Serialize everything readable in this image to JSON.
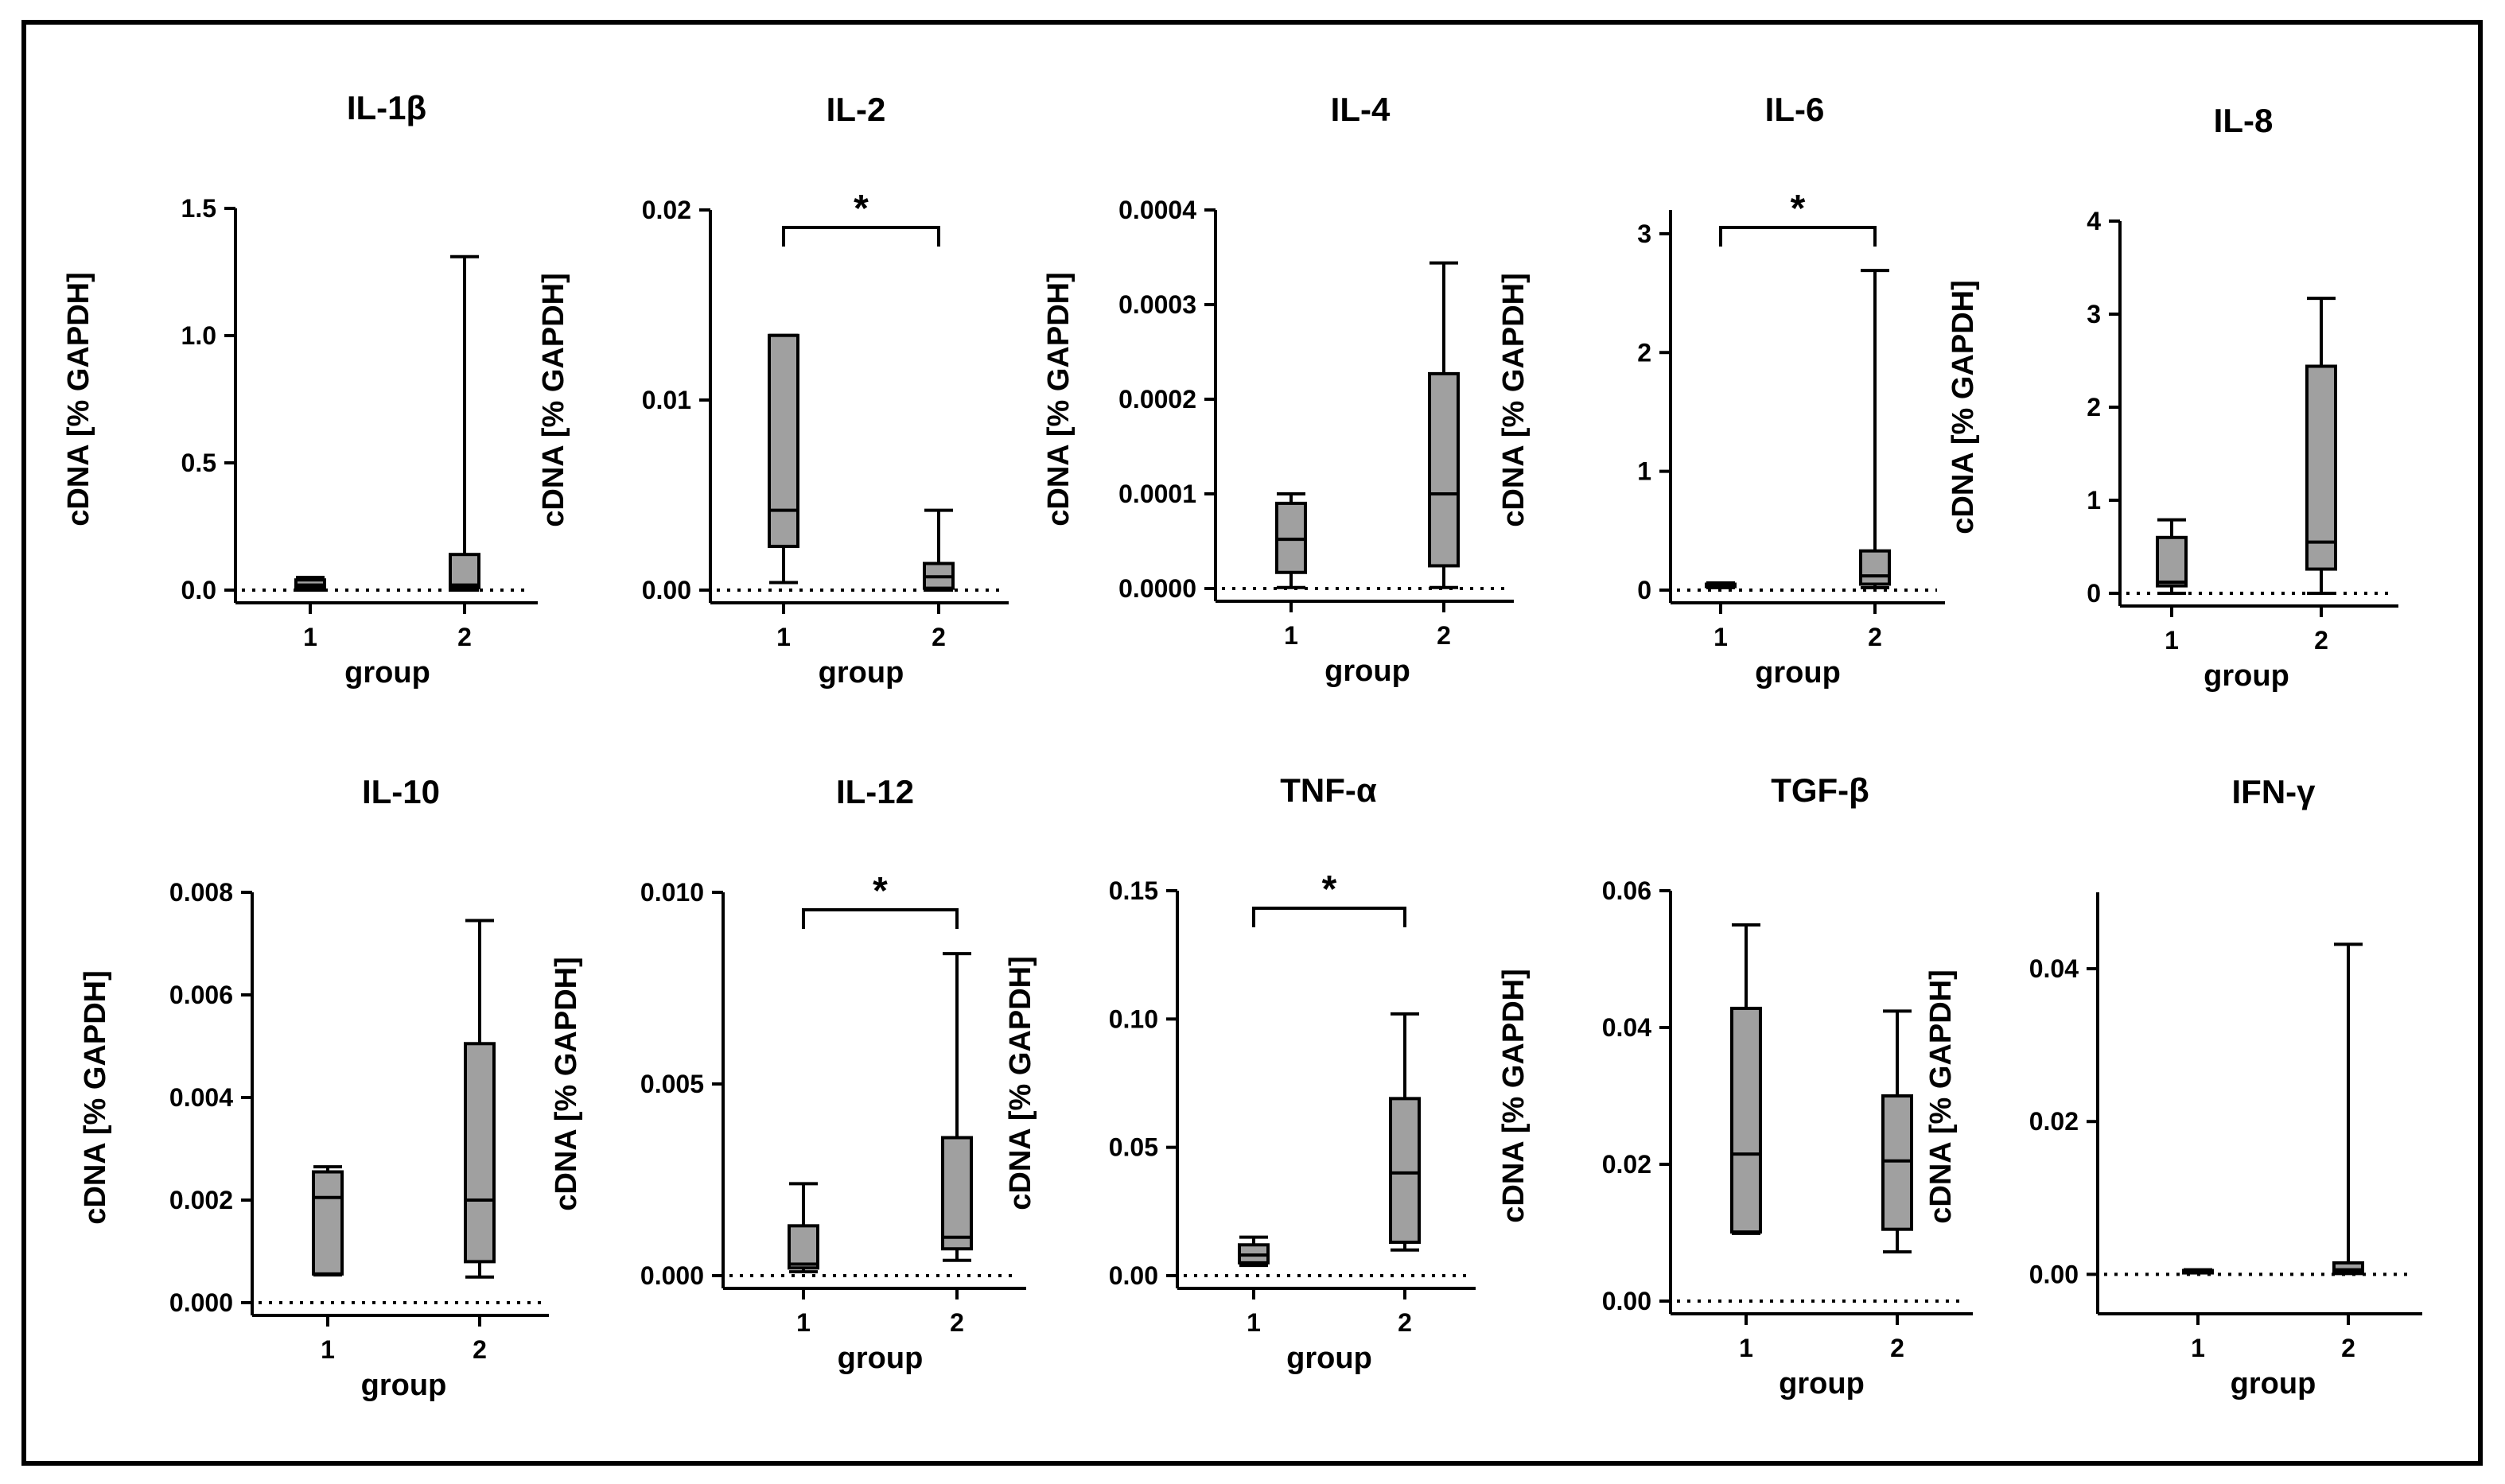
{
  "colors": {
    "box_fill": "#a0a0a0",
    "stroke": "#000000",
    "background": "#ffffff"
  },
  "chart_data": [
    {
      "type": "box",
      "title": "IL-1β",
      "ylabel": "cDNA [% GAPDH]",
      "xlabel": "group",
      "categories": [
        "1",
        "2"
      ],
      "ylim": [
        0,
        1.5
      ],
      "yticks": [
        0,
        0.5,
        1.0,
        1.5
      ],
      "yticklabels": [
        "0.0",
        "0.5",
        "1.0",
        "1.5"
      ],
      "boxes": [
        {
          "group": "1",
          "min": 0.0,
          "q1": 0.01,
          "median": 0.02,
          "q3": 0.04,
          "max": 0.05
        },
        {
          "group": "2",
          "min": 0.0,
          "q1": 0.01,
          "median": 0.02,
          "q3": 0.14,
          "max": 1.31
        }
      ],
      "significance": ""
    },
    {
      "type": "box",
      "title": "IL-2",
      "ylabel": "cDNA [% GAPDH]",
      "xlabel": "group",
      "categories": [
        "1",
        "2"
      ],
      "ylim": [
        0,
        0.02
      ],
      "yticks": [
        0,
        0.01,
        0.02
      ],
      "yticklabels": [
        "0.00",
        "0.01",
        "0.02"
      ],
      "boxes": [
        {
          "group": "1",
          "min": 0.0004,
          "q1": 0.0023,
          "median": 0.0042,
          "q3": 0.0134,
          "max": 0.0134
        },
        {
          "group": "2",
          "min": 0.0,
          "q1": 0.0001,
          "median": 0.0007,
          "q3": 0.0014,
          "max": 0.0042
        }
      ],
      "significance": "*"
    },
    {
      "type": "box",
      "title": "IL-4",
      "ylabel": "cDNA [% GAPDH]",
      "xlabel": "group",
      "categories": [
        "1",
        "2"
      ],
      "ylim": [
        0,
        0.0004
      ],
      "yticks": [
        0,
        0.0001,
        0.0002,
        0.0003,
        0.0004
      ],
      "yticklabels": [
        "0.0000",
        "0.0001",
        "0.0002",
        "0.0003",
        "0.0004"
      ],
      "boxes": [
        {
          "group": "1",
          "min": 1e-06,
          "q1": 1.7e-05,
          "median": 5.2e-05,
          "q3": 9e-05,
          "max": 0.0001
        },
        {
          "group": "2",
          "min": 1e-06,
          "q1": 2.4e-05,
          "median": 0.0001,
          "q3": 0.000227,
          "max": 0.000344
        }
      ],
      "significance": ""
    },
    {
      "type": "box",
      "title": "IL-6",
      "ylabel": "cDNA [% GAPDH]",
      "xlabel": "group",
      "categories": [
        "1",
        "2"
      ],
      "ylim": [
        0,
        3.2
      ],
      "yticks": [
        0,
        1,
        2,
        3
      ],
      "yticklabels": [
        "0",
        "1",
        "2",
        "3"
      ],
      "boxes": [
        {
          "group": "1",
          "min": 0.02,
          "q1": 0.03,
          "median": 0.04,
          "q3": 0.05,
          "max": 0.06
        },
        {
          "group": "2",
          "min": 0.02,
          "q1": 0.05,
          "median": 0.12,
          "q3": 0.33,
          "max": 2.69
        }
      ],
      "significance": "*"
    },
    {
      "type": "box",
      "title": "IL-8",
      "ylabel": "cDNA [% GAPDH]",
      "xlabel": "group",
      "categories": [
        "1",
        "2"
      ],
      "ylim": [
        0,
        4
      ],
      "yticks": [
        0,
        1,
        2,
        3,
        4
      ],
      "yticklabels": [
        "0",
        "1",
        "2",
        "3",
        "4"
      ],
      "boxes": [
        {
          "group": "1",
          "min": 0.0,
          "q1": 0.08,
          "median": 0.12,
          "q3": 0.6,
          "max": 0.79
        },
        {
          "group": "2",
          "min": 0.0,
          "q1": 0.26,
          "median": 0.55,
          "q3": 2.44,
          "max": 3.17
        }
      ],
      "significance": ""
    },
    {
      "type": "box",
      "title": "IL-10",
      "ylabel": "cDNA [% GAPDH]",
      "xlabel": "group",
      "categories": [
        "1",
        "2"
      ],
      "ylim": [
        0,
        0.008
      ],
      "yticks": [
        0,
        0.002,
        0.004,
        0.006,
        0.008
      ],
      "yticklabels": [
        "0.000",
        "0.002",
        "0.004",
        "0.006",
        "0.008"
      ],
      "boxes": [
        {
          "group": "1",
          "min": 0.00054,
          "q1": 0.00056,
          "median": 0.00205,
          "q3": 0.00255,
          "max": 0.00265
        },
        {
          "group": "2",
          "min": 0.0005,
          "q1": 0.0008,
          "median": 0.002,
          "q3": 0.00505,
          "max": 0.00745
        }
      ],
      "significance": ""
    },
    {
      "type": "box",
      "title": "IL-12",
      "ylabel": "cDNA [% GAPDH]",
      "xlabel": "group",
      "categories": [
        "1",
        "2"
      ],
      "ylim": [
        0,
        0.01
      ],
      "yticks": [
        0,
        0.005,
        0.01
      ],
      "yticklabels": [
        "0.000",
        "0.005",
        "0.010"
      ],
      "boxes": [
        {
          "group": "1",
          "min": 0.0001,
          "q1": 0.0002,
          "median": 0.0003,
          "q3": 0.0013,
          "max": 0.0024
        },
        {
          "group": "2",
          "min": 0.0004,
          "q1": 0.0007,
          "median": 0.001,
          "q3": 0.0036,
          "max": 0.0084
        }
      ],
      "significance": "*"
    },
    {
      "type": "box",
      "title": "TNF-α",
      "ylabel": "cDNA [% GAPDH]",
      "xlabel": "group",
      "categories": [
        "1",
        "2"
      ],
      "ylim": [
        0,
        0.15
      ],
      "yticks": [
        0,
        0.05,
        0.1,
        0.15
      ],
      "yticklabels": [
        "0.00",
        "0.05",
        "0.10",
        "0.15"
      ],
      "boxes": [
        {
          "group": "1",
          "min": 0.004,
          "q1": 0.005,
          "median": 0.008,
          "q3": 0.012,
          "max": 0.015
        },
        {
          "group": "2",
          "min": 0.01,
          "q1": 0.013,
          "median": 0.04,
          "q3": 0.069,
          "max": 0.102
        }
      ],
      "significance": "*"
    },
    {
      "type": "box",
      "title": "TGF-β",
      "ylabel": "cDNA [% GAPDH]",
      "xlabel": "group",
      "categories": [
        "1",
        "2"
      ],
      "ylim": [
        0,
        0.06
      ],
      "yticks": [
        0,
        0.02,
        0.04,
        0.06
      ],
      "yticklabels": [
        "0.00",
        "0.02",
        "0.04",
        "0.06"
      ],
      "boxes": [
        {
          "group": "1",
          "min": 0.0099,
          "q1": 0.0101,
          "median": 0.0215,
          "q3": 0.0428,
          "max": 0.055
        },
        {
          "group": "2",
          "min": 0.0072,
          "q1": 0.0105,
          "median": 0.0205,
          "q3": 0.03,
          "max": 0.0424
        }
      ],
      "significance": ""
    },
    {
      "type": "box",
      "title": "IFN-γ",
      "ylabel": "cDNA [% GAPDH]",
      "xlabel": "group",
      "categories": [
        "1",
        "2"
      ],
      "ylim": [
        -0.0035,
        0.05
      ],
      "yticks": [
        0,
        0.02,
        0.04
      ],
      "yticklabels": [
        "0.00",
        "0.02",
        "0.04"
      ],
      "boxes": [
        {
          "group": "1",
          "min": 0.0002,
          "q1": 0.0003,
          "median": 0.0004,
          "q3": 0.0005,
          "max": 0.0006
        },
        {
          "group": "2",
          "min": 0.0001,
          "q1": 0.0003,
          "median": 0.0006,
          "q3": 0.0015,
          "max": 0.0432
        }
      ],
      "significance": ""
    }
  ]
}
